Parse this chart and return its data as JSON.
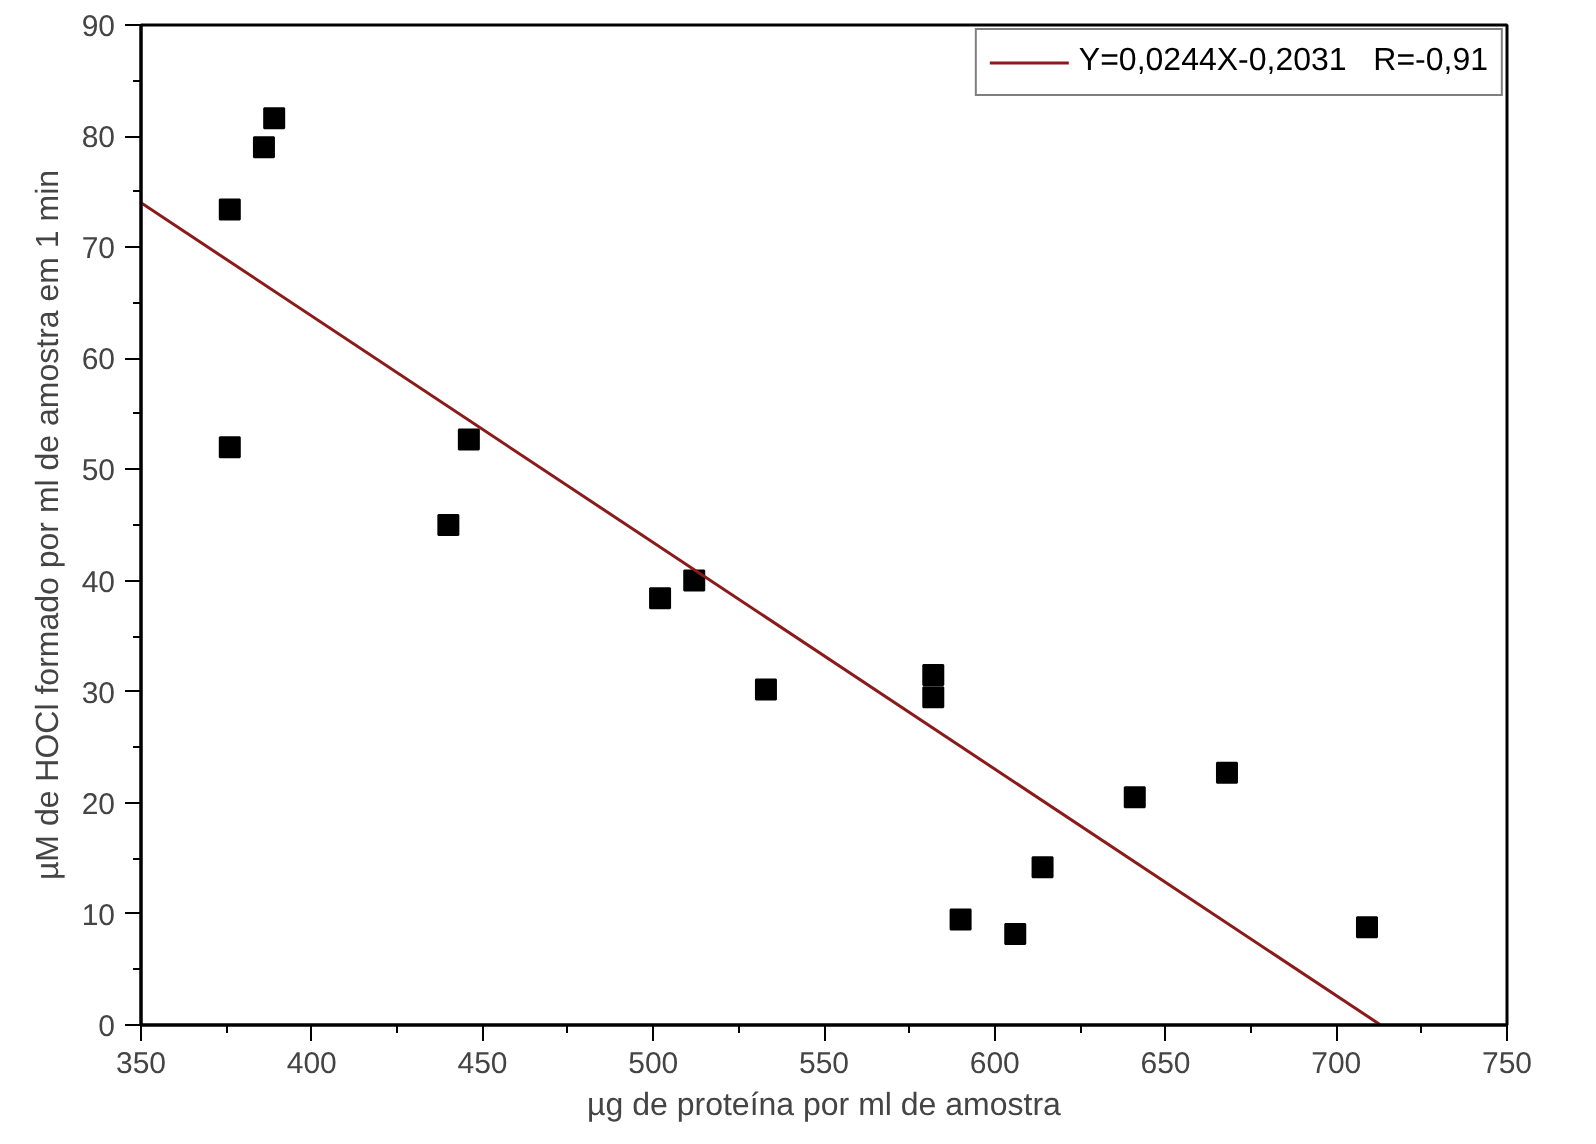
{
  "chart_data": {
    "type": "scatter",
    "xlabel": "µg de proteína por ml de amostra",
    "ylabel": "µM de HOCl formado por ml de amostra em 1 min",
    "xlim": [
      350,
      750
    ],
    "xticks": [
      350,
      400,
      450,
      500,
      550,
      600,
      650,
      700,
      750
    ],
    "ylim": [
      0,
      90
    ],
    "yticks": [
      0,
      10,
      20,
      30,
      40,
      50,
      60,
      70,
      80,
      90
    ],
    "grid": false,
    "legend": "top right",
    "series": [
      {
        "marker": "square",
        "color": "#000000",
        "x": [
          376,
          386,
          389,
          376,
          440,
          446,
          502,
          512,
          533,
          582,
          582,
          590,
          606,
          614,
          641,
          668,
          709
        ],
        "values": [
          73.4,
          79,
          81.6,
          52,
          45,
          52.7,
          38.4,
          40,
          30.2,
          31.5,
          29.5,
          9.5,
          8.2,
          14.2,
          20.5,
          22.7,
          8.8
        ]
      },
      {
        "type": "line",
        "name": "Y=0,0244X-0,2031   R=-0,91",
        "color": "#8b1a1a",
        "line_style": "solid",
        "x": [
          350,
          713
        ],
        "values": [
          74,
          0
        ]
      }
    ]
  }
}
